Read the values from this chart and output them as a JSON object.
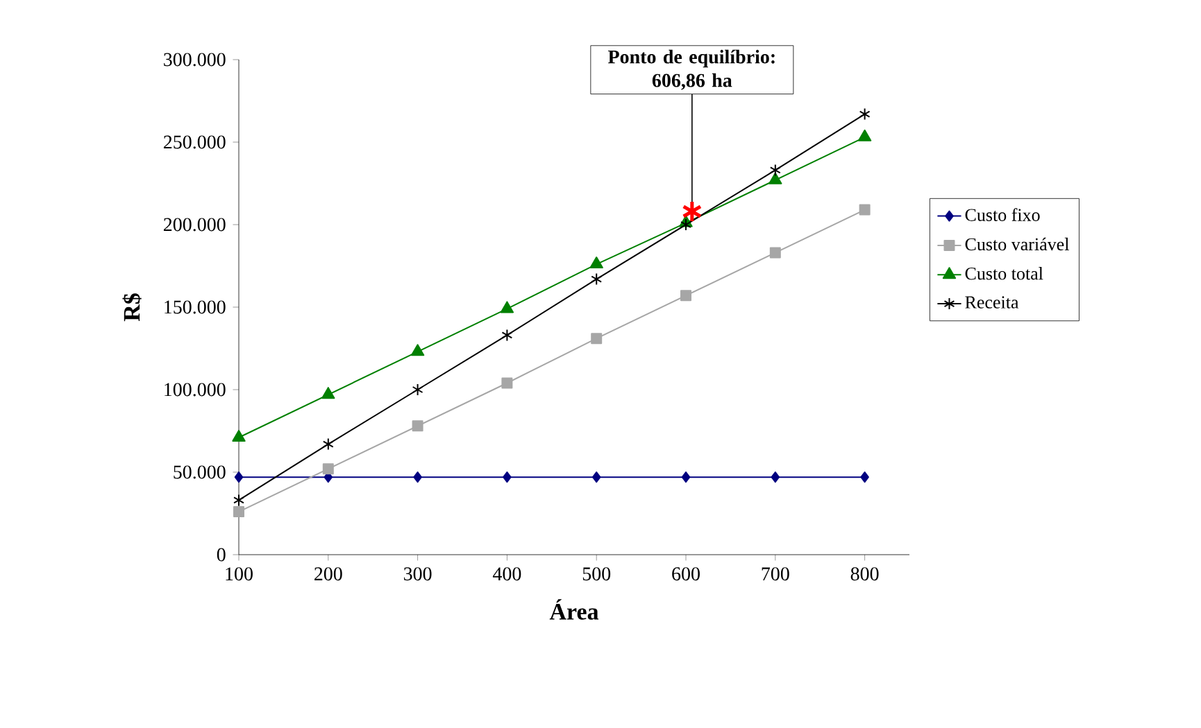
{
  "chart_data": {
    "type": "line",
    "xlabel": "Área",
    "ylabel": "R$",
    "x": [
      100,
      200,
      300,
      400,
      500,
      600,
      700,
      800
    ],
    "series": [
      {
        "name": "Custo fixo",
        "color": "#000080",
        "marker": "diamond",
        "values": [
          47000,
          47000,
          47000,
          47000,
          47000,
          47000,
          47000,
          47000
        ]
      },
      {
        "name": "Custo variável",
        "color": "#a6a6a6",
        "marker": "square",
        "values": [
          26000,
          52000,
          78000,
          104000,
          131000,
          157000,
          183000,
          209000
        ]
      },
      {
        "name": "Custo total",
        "color": "#008000",
        "marker": "triangle",
        "values": [
          71000,
          97000,
          123000,
          149000,
          176000,
          201000,
          227000,
          253000
        ]
      },
      {
        "name": "Receita",
        "color": "#000000",
        "marker": "cross",
        "values": [
          33000,
          67000,
          100000,
          133000,
          167000,
          200000,
          233000,
          267000
        ]
      },
      {
        "type": "scatter",
        "color": "#ff0000",
        "marker": "cross",
        "x": [
          606.86
        ],
        "values": [
          208000
        ]
      }
    ],
    "xlim": [
      100,
      850
    ],
    "xticks": [
      100,
      200,
      300,
      400,
      500,
      600,
      700,
      800
    ],
    "ylim": [
      0,
      300000
    ],
    "yticks": [
      {
        "value": 0,
        "label": "0"
      },
      {
        "value": 50000,
        "label": "50.000"
      },
      {
        "value": 100000,
        "label": "100.000"
      },
      {
        "value": 150000,
        "label": "150.000"
      },
      {
        "value": 200000,
        "label": "200.000"
      },
      {
        "value": 250000,
        "label": "250.000"
      },
      {
        "value": 300000,
        "label": "300.000"
      }
    ],
    "annotations": [
      {
        "text": "Ponto de equilíbrio: 606,86 ha",
        "x": 606.86,
        "y": 208000
      }
    ],
    "legend": "right",
    "grid": false
  }
}
